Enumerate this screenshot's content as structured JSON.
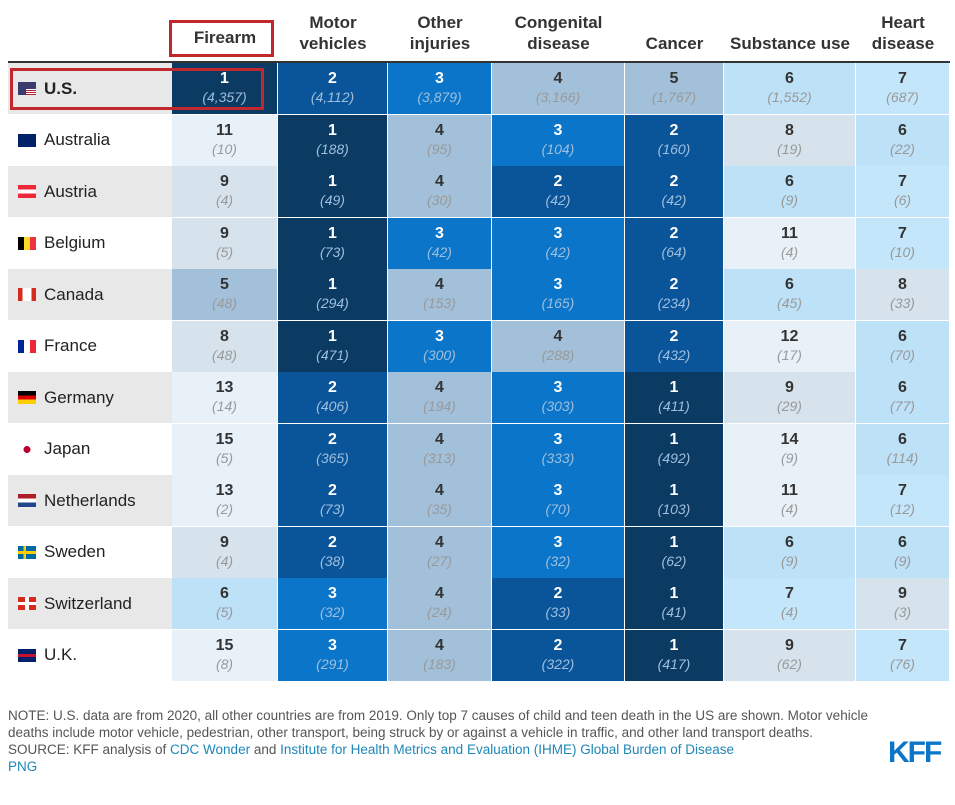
{
  "chart_data": {
    "type": "heatmap",
    "columns": [
      "Firearm",
      "Motor vehicles",
      "Other injuries",
      "Congenital disease",
      "Cancer",
      "Substance use",
      "Heart disease"
    ],
    "rows": [
      {
        "country": "U.S.",
        "flag": "us",
        "ranks": [
          1,
          2,
          3,
          4,
          5,
          6,
          7
        ],
        "counts": [
          "4,357",
          "4,112",
          "3,879",
          "3,166",
          "1,767",
          "1,552",
          "687"
        ]
      },
      {
        "country": "Australia",
        "flag": "au",
        "ranks": [
          11,
          1,
          4,
          3,
          2,
          8,
          6
        ],
        "counts": [
          "10",
          "188",
          "95",
          "104",
          "160",
          "19",
          "22"
        ]
      },
      {
        "country": "Austria",
        "flag": "at",
        "ranks": [
          9,
          1,
          4,
          2,
          2,
          6,
          7
        ],
        "counts": [
          "4",
          "49",
          "30",
          "42",
          "42",
          "9",
          "6"
        ]
      },
      {
        "country": "Belgium",
        "flag": "be",
        "ranks": [
          9,
          1,
          3,
          3,
          2,
          11,
          7
        ],
        "counts": [
          "5",
          "73",
          "42",
          "42",
          "64",
          "4",
          "10"
        ]
      },
      {
        "country": "Canada",
        "flag": "ca",
        "ranks": [
          5,
          1,
          4,
          3,
          2,
          6,
          8
        ],
        "counts": [
          "48",
          "294",
          "153",
          "165",
          "234",
          "45",
          "33"
        ]
      },
      {
        "country": "France",
        "flag": "fr",
        "ranks": [
          8,
          1,
          3,
          4,
          2,
          12,
          6
        ],
        "counts": [
          "48",
          "471",
          "300",
          "288",
          "432",
          "17",
          "70"
        ]
      },
      {
        "country": "Germany",
        "flag": "de",
        "ranks": [
          13,
          2,
          4,
          3,
          1,
          9,
          6
        ],
        "counts": [
          "14",
          "406",
          "194",
          "303",
          "411",
          "29",
          "77"
        ]
      },
      {
        "country": "Japan",
        "flag": "jp",
        "ranks": [
          15,
          2,
          4,
          3,
          1,
          14,
          6
        ],
        "counts": [
          "5",
          "365",
          "313",
          "333",
          "492",
          "9",
          "114"
        ]
      },
      {
        "country": "Netherlands",
        "flag": "nl",
        "ranks": [
          13,
          2,
          4,
          3,
          1,
          11,
          7
        ],
        "counts": [
          "2",
          "73",
          "35",
          "70",
          "103",
          "4",
          "12"
        ]
      },
      {
        "country": "Sweden",
        "flag": "se",
        "ranks": [
          9,
          2,
          4,
          3,
          1,
          6,
          6
        ],
        "counts": [
          "4",
          "38",
          "27",
          "32",
          "62",
          "9",
          "9"
        ]
      },
      {
        "country": "Switzerland",
        "flag": "ch",
        "ranks": [
          6,
          3,
          4,
          2,
          1,
          7,
          9
        ],
        "counts": [
          "5",
          "32",
          "24",
          "33",
          "41",
          "4",
          "3"
        ]
      },
      {
        "country": "U.K.",
        "flag": "uk",
        "ranks": [
          15,
          3,
          4,
          2,
          1,
          9,
          7
        ],
        "counts": [
          "8",
          "291",
          "183",
          "322",
          "417",
          "62",
          "76"
        ]
      }
    ],
    "rank_colors": {
      "1": "#0b3a63",
      "2": "#0a5599",
      "3": "#0a75c9",
      "4": "#a3c0da",
      "5": "#a3c0da",
      "6": "#bde1f7",
      "7": "#c4e6fa",
      "8": "#d6e3ec",
      "9": "#d6e3ec",
      "other": "#e8f1f8"
    },
    "highlight_color": "#c1272d"
  },
  "footer": {
    "note": "NOTE: U.S. data are from 2020, all other countries are from 2019. Only top 7 causes of child and teen death in the US are shown. Motor vehicle deaths include motor vehicle, pedestrian, other transport, being struck by or against a vehicle in traffic, and other land transport deaths.",
    "source_prefix": "SOURCE: KFF analysis of ",
    "link1": "CDC Wonder",
    "and": " and ",
    "link2": "Institute for Health Metrics and Evaluation (IHME) Global Burden of Disease",
    "png": "PNG",
    "logo": "KFF"
  }
}
